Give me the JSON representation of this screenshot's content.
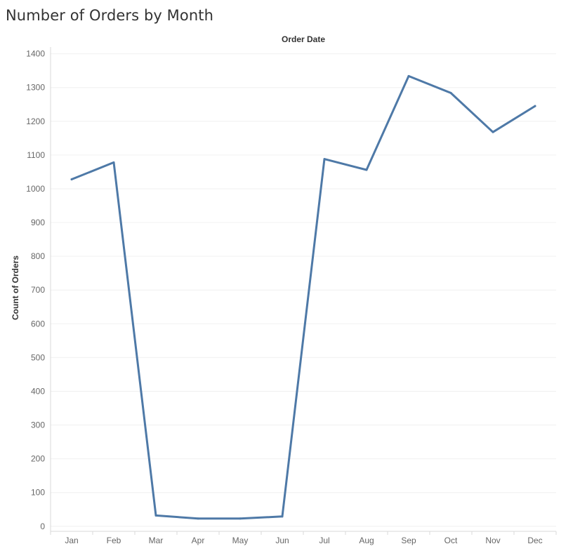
{
  "chart_data": {
    "type": "line",
    "title": "Number of Orders by Month",
    "xheader": "Order Date",
    "ylabel": "Count of Orders",
    "categories": [
      "Jan",
      "Feb",
      "Mar",
      "Apr",
      "May",
      "Jun",
      "Jul",
      "Aug",
      "Sep",
      "Oct",
      "Nov",
      "Dec"
    ],
    "series": [
      {
        "values": [
          1028,
          1078,
          32,
          23,
          23,
          29,
          1088,
          1056,
          1334,
          1284,
          1168,
          1245
        ]
      }
    ],
    "ylim": [
      -15,
      1420
    ],
    "yticks": [
      0,
      100,
      200,
      300,
      400,
      500,
      600,
      700,
      800,
      900,
      1000,
      1100,
      1200,
      1300,
      1400
    ],
    "grid": true,
    "line_color": "#4e79a7",
    "grid_color": "#f0f0f0",
    "axis_color": "#d9d9d9"
  }
}
